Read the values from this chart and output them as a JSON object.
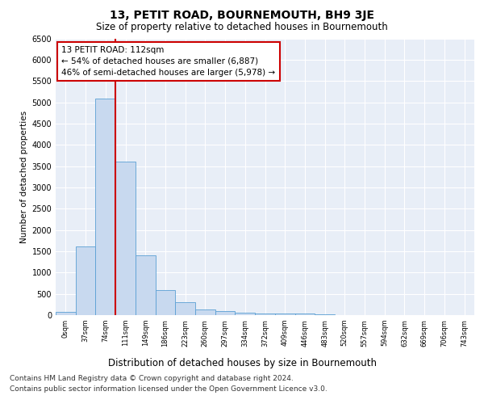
{
  "title": "13, PETIT ROAD, BOURNEMOUTH, BH9 3JE",
  "subtitle": "Size of property relative to detached houses in Bournemouth",
  "xlabel": "Distribution of detached houses by size in Bournemouth",
  "ylabel": "Number of detached properties",
  "bin_labels": [
    "0sqm",
    "37sqm",
    "74sqm",
    "111sqm",
    "149sqm",
    "186sqm",
    "223sqm",
    "260sqm",
    "297sqm",
    "334sqm",
    "372sqm",
    "409sqm",
    "446sqm",
    "483sqm",
    "520sqm",
    "557sqm",
    "594sqm",
    "632sqm",
    "669sqm",
    "706sqm",
    "743sqm"
  ],
  "bar_values": [
    70,
    1620,
    5080,
    3600,
    1400,
    590,
    300,
    140,
    90,
    50,
    40,
    35,
    30,
    10,
    5,
    5,
    5,
    5,
    5,
    5,
    0
  ],
  "bar_color": "#c8d9ef",
  "bar_edge_color": "#5a9fd4",
  "vline_x_index": 3,
  "vline_color": "#cc0000",
  "annotation_text": "13 PETIT ROAD: 112sqm\n← 54% of detached houses are smaller (6,887)\n46% of semi-detached houses are larger (5,978) →",
  "annotation_box_color": "#ffffff",
  "annotation_box_edge_color": "#cc0000",
  "ylim": [
    0,
    6500
  ],
  "yticks": [
    0,
    500,
    1000,
    1500,
    2000,
    2500,
    3000,
    3500,
    4000,
    4500,
    5000,
    5500,
    6000,
    6500
  ],
  "plot_bg_color": "#e8eef7",
  "footer_line1": "Contains HM Land Registry data © Crown copyright and database right 2024.",
  "footer_line2": "Contains public sector information licensed under the Open Government Licence v3.0.",
  "title_fontsize": 10,
  "subtitle_fontsize": 8.5,
  "annotation_fontsize": 7.5,
  "footer_fontsize": 6.5,
  "ylabel_fontsize": 7.5,
  "xlabel_fontsize": 8.5
}
